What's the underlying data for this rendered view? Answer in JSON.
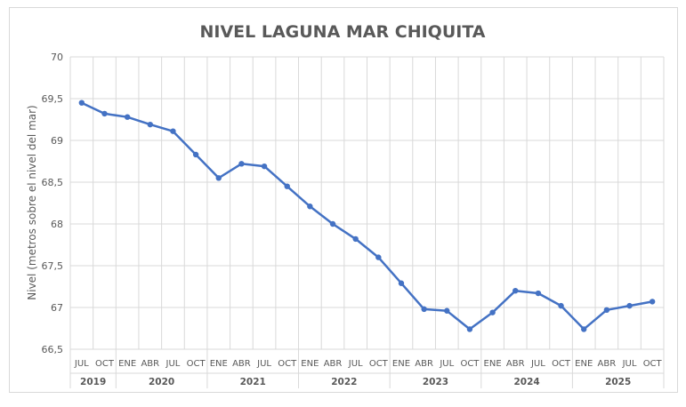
{
  "chart_data": {
    "type": "line",
    "title": "NIVEL LAGUNA MAR CHIQUITA",
    "xlabel": "",
    "ylabel": "Nivel (metros sobre el nivel del mar)",
    "ylim": [
      66.5,
      70
    ],
    "yticks": [
      "66,5",
      "67",
      "67,5",
      "68",
      "68,5",
      "69",
      "69,5",
      "70"
    ],
    "grid": true,
    "legend": "none",
    "line_color": "#4472c4",
    "categories": [
      "JUL",
      "OCT",
      "ENE",
      "ABR",
      "JUL",
      "OCT",
      "ENE",
      "ABR",
      "JUL",
      "OCT",
      "ENE",
      "ABR",
      "JUL",
      "OCT",
      "ENE",
      "ABR",
      "JUL",
      "OCT",
      "ENE",
      "ABR",
      "JUL",
      "OCT",
      "ENE",
      "ABR",
      "JUL",
      "OCT"
    ],
    "year_groups": [
      {
        "label": "2019",
        "count": 2
      },
      {
        "label": "2020",
        "count": 4
      },
      {
        "label": "2021",
        "count": 4
      },
      {
        "label": "2022",
        "count": 4
      },
      {
        "label": "2023",
        "count": 4
      },
      {
        "label": "2024",
        "count": 4
      },
      {
        "label": "2025",
        "count": 4
      }
    ],
    "values": [
      69.45,
      69.32,
      69.28,
      69.19,
      69.11,
      68.83,
      68.55,
      68.72,
      68.69,
      68.45,
      68.21,
      68.0,
      67.82,
      67.6,
      67.29,
      66.98,
      66.96,
      66.74,
      66.94,
      67.2,
      67.17,
      67.02,
      66.74,
      66.97,
      67.02,
      67.07
    ]
  }
}
